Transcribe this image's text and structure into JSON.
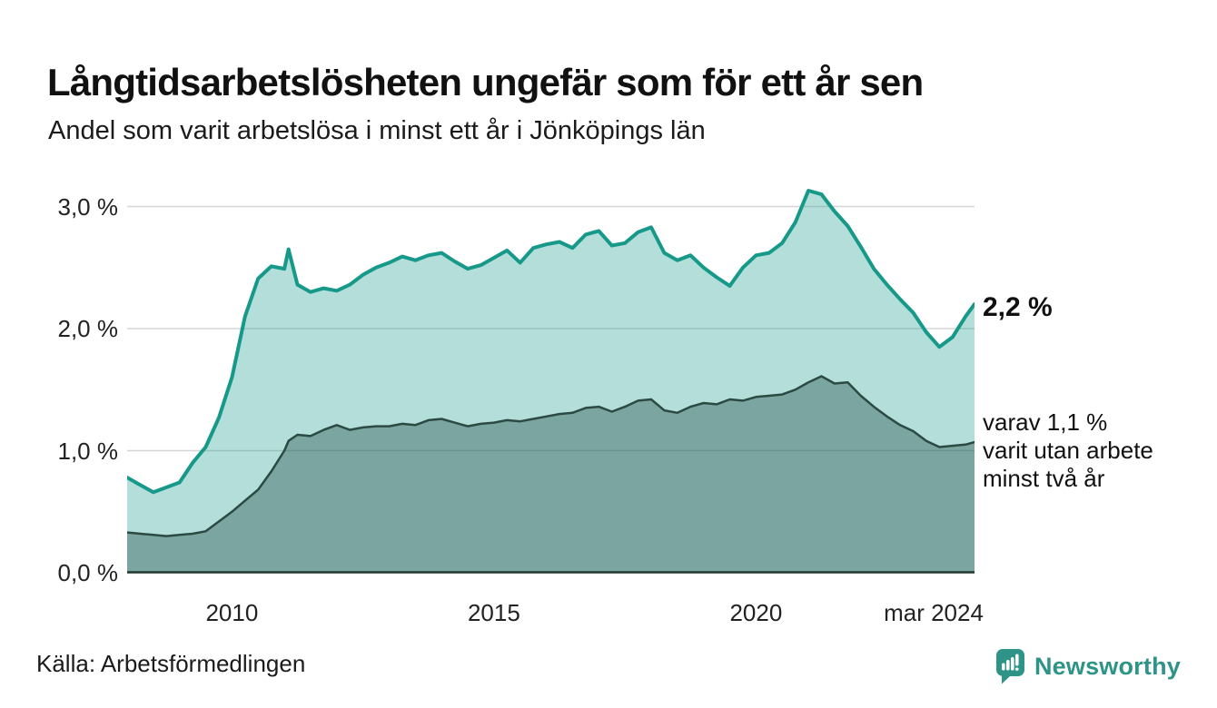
{
  "header": {
    "title": "Långtidsarbetslösheten ungefär som för ett år sen",
    "subtitle": "Andel som varit arbetslösa i minst ett år i Jönköpings län"
  },
  "chart_data": {
    "type": "area",
    "title": "Långtidsarbetslösheten ungefär som för ett år sen",
    "subtitle": "Andel som varit arbetslösa i minst ett år i Jönköpings län",
    "xlim": [
      2008,
      2024.17
    ],
    "ylim": [
      0,
      3.28
    ],
    "grid": "horizontal",
    "legend_position": "none",
    "y_ticks": [
      {
        "value": 0,
        "label": "0,0 %"
      },
      {
        "value": 1,
        "label": "1,0 %"
      },
      {
        "value": 2,
        "label": "2,0 %"
      },
      {
        "value": 3,
        "label": "3,0 %"
      }
    ],
    "x_ticks": [
      {
        "value": 2010,
        "label": "2010"
      },
      {
        "value": 2015,
        "label": "2015"
      },
      {
        "value": 2020,
        "label": "2020"
      },
      {
        "value": 2024.17,
        "label": "mar 2024"
      }
    ],
    "x": [
      2008,
      2008.25,
      2008.5,
      2008.75,
      2009,
      2009.25,
      2009.5,
      2009.75,
      2010,
      2010.25,
      2010.5,
      2010.75,
      2011,
      2011.08,
      2011.25,
      2011.5,
      2011.75,
      2012,
      2012.25,
      2012.5,
      2012.75,
      2013,
      2013.25,
      2013.5,
      2013.75,
      2014,
      2014.25,
      2014.5,
      2014.75,
      2015,
      2015.25,
      2015.5,
      2015.75,
      2016,
      2016.25,
      2016.5,
      2016.75,
      2017,
      2017.25,
      2017.5,
      2017.75,
      2018,
      2018.25,
      2018.5,
      2018.75,
      2019,
      2019.25,
      2019.5,
      2019.75,
      2020,
      2020.25,
      2020.5,
      2020.75,
      2021,
      2021.25,
      2021.5,
      2021.75,
      2022,
      2022.25,
      2022.5,
      2022.75,
      2023,
      2023.25,
      2023.5,
      2023.75,
      2024,
      2024.17
    ],
    "series": [
      {
        "name": "Andel arbetslösa minst ett år",
        "stroke": "#17998a",
        "fill": "rgba(25,155,140,0.33)",
        "stroke_width": 4,
        "values": [
          0.78,
          0.72,
          0.66,
          0.7,
          0.74,
          0.9,
          1.03,
          1.27,
          1.6,
          2.1,
          2.41,
          2.51,
          2.49,
          2.65,
          2.36,
          2.3,
          2.33,
          2.31,
          2.36,
          2.44,
          2.5,
          2.54,
          2.59,
          2.56,
          2.6,
          2.62,
          2.55,
          2.49,
          2.52,
          2.58,
          2.64,
          2.54,
          2.66,
          2.69,
          2.71,
          2.66,
          2.77,
          2.8,
          2.68,
          2.7,
          2.79,
          2.83,
          2.62,
          2.56,
          2.6,
          2.5,
          2.42,
          2.35,
          2.5,
          2.6,
          2.62,
          2.7,
          2.87,
          3.13,
          3.1,
          2.96,
          2.84,
          2.67,
          2.49,
          2.36,
          2.24,
          2.13,
          1.97,
          1.85,
          1.93,
          2.1,
          2.2
        ]
      },
      {
        "name": "Andel arbetslösa minst två år",
        "stroke": "#2c4a44",
        "fill": "rgba(20,60,55,0.35)",
        "stroke_width": 2.5,
        "values": [
          0.33,
          0.32,
          0.31,
          0.3,
          0.31,
          0.32,
          0.34,
          0.42,
          0.5,
          0.59,
          0.68,
          0.83,
          1.0,
          1.08,
          1.13,
          1.12,
          1.17,
          1.21,
          1.17,
          1.19,
          1.2,
          1.2,
          1.22,
          1.21,
          1.25,
          1.26,
          1.23,
          1.2,
          1.22,
          1.23,
          1.25,
          1.24,
          1.26,
          1.28,
          1.3,
          1.31,
          1.35,
          1.36,
          1.32,
          1.36,
          1.41,
          1.42,
          1.33,
          1.31,
          1.36,
          1.39,
          1.38,
          1.42,
          1.41,
          1.44,
          1.45,
          1.46,
          1.5,
          1.56,
          1.61,
          1.55,
          1.56,
          1.45,
          1.36,
          1.28,
          1.21,
          1.16,
          1.08,
          1.03,
          1.04,
          1.05,
          1.07
        ]
      }
    ],
    "annotations": {
      "current_label": "2,2 %",
      "sub_lines": [
        "varav 1,1 %",
        "varit utan arbete",
        "minst två år"
      ]
    },
    "colors": {
      "gridline": "#d6d6d6",
      "baseline": "#20362f",
      "background": "#ffffff"
    }
  },
  "footer": {
    "source": "Källa: Arbetsförmedlingen",
    "brand": "Newsworthy",
    "brand_color": "#2f9488"
  }
}
